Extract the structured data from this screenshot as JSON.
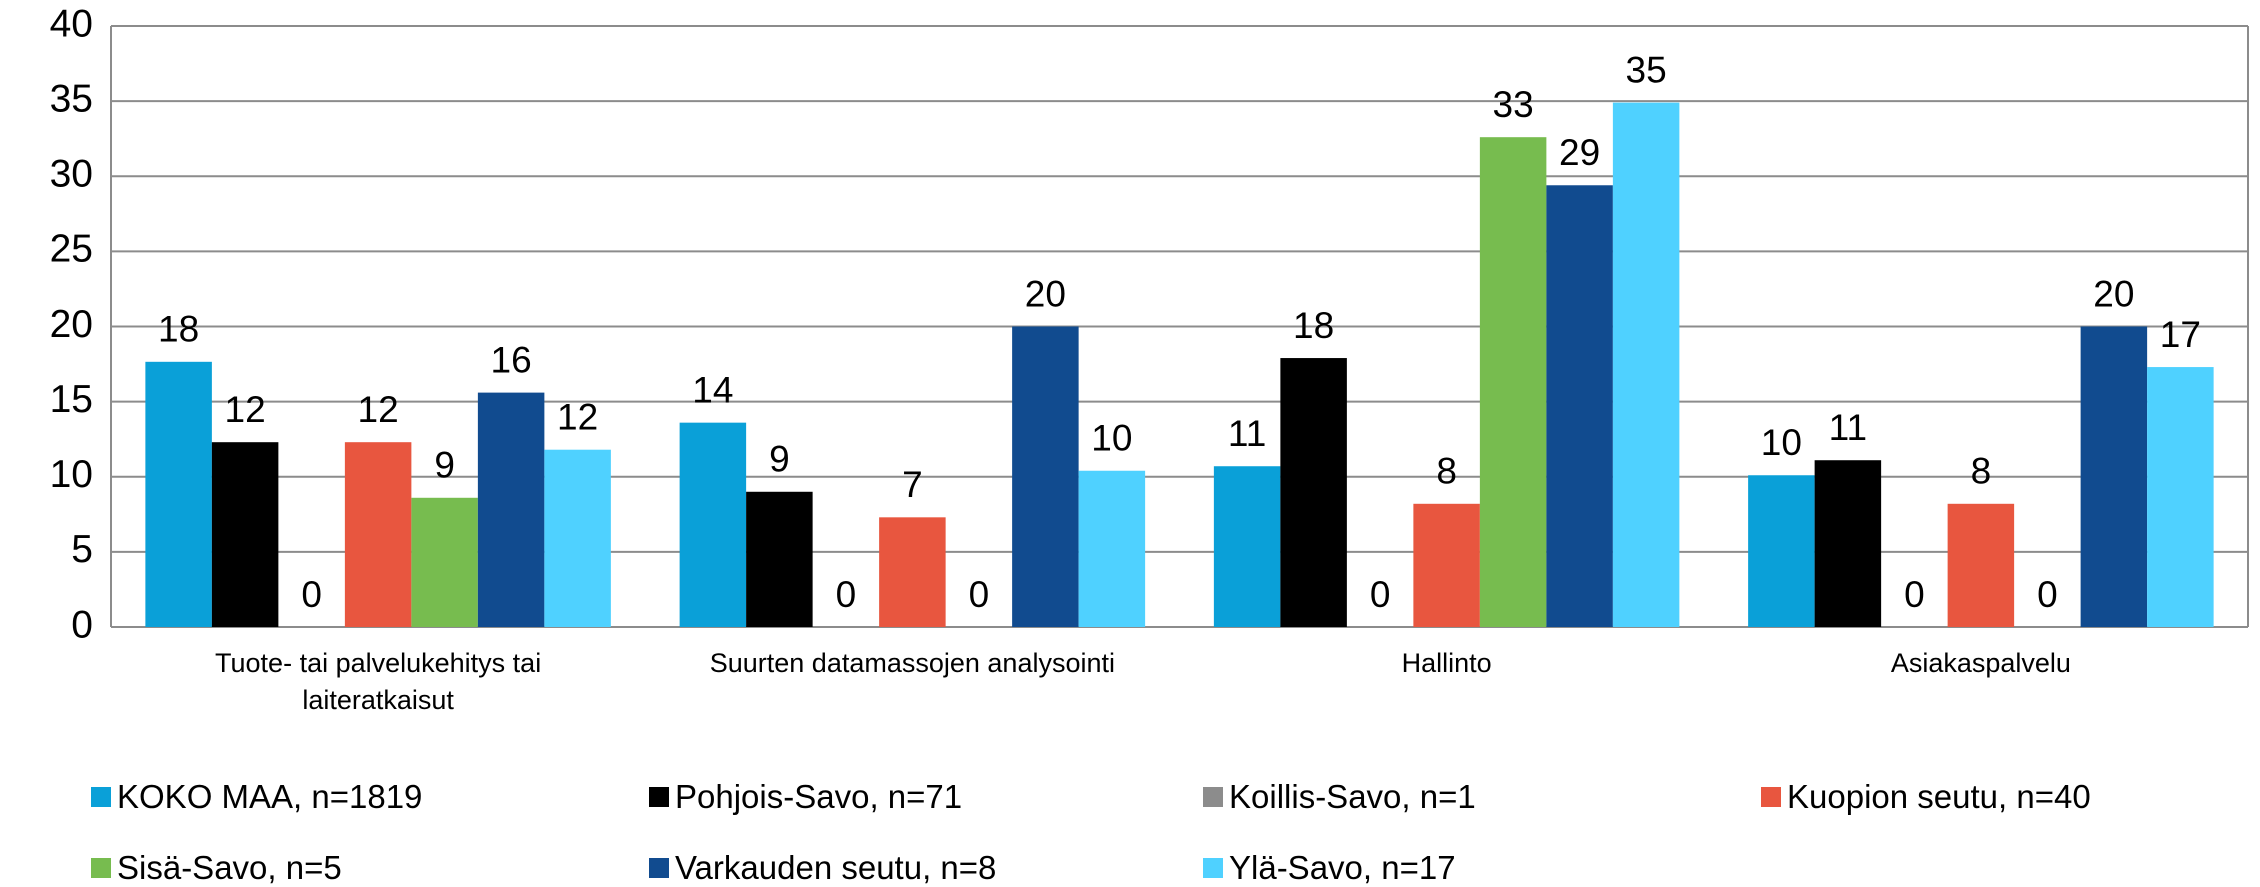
{
  "chart_data": {
    "type": "bar",
    "categories": [
      "Tuote- tai palvelukehitys tai laiteratkaisut",
      "Suurten datamassojen analysointi",
      "Hallinto",
      "Asiakaspalvelu"
    ],
    "series": [
      {
        "name": "KOKO MAA, n=1819",
        "color": "#0aa0d8",
        "values": [
          17.65,
          13.6,
          10.7,
          10.1
        ],
        "value_labels": [
          "18",
          "14",
          "11",
          "10"
        ]
      },
      {
        "name": "Pohjois-Savo, n=71",
        "color": "#000000",
        "values": [
          12.3,
          9.0,
          17.9,
          11.1
        ],
        "value_labels": [
          "12",
          "9",
          "18",
          "11"
        ]
      },
      {
        "name": "Koillis-Savo, n=1",
        "color": "#8c8c8c",
        "values": [
          0,
          0,
          0,
          0
        ],
        "value_labels": [
          "0",
          "0",
          "0",
          "0"
        ]
      },
      {
        "name": "Kuopion seutu, n=40",
        "color": "#e8563f",
        "values": [
          12.3,
          7.3,
          8.2,
          8.2
        ],
        "value_labels": [
          "12",
          "7",
          "8",
          "8"
        ]
      },
      {
        "name": "Sisä-Savo, n=5",
        "color": "#77bc4f",
        "values": [
          8.6,
          0,
          32.6,
          0
        ],
        "value_labels": [
          "9",
          "0",
          "33",
          "0"
        ]
      },
      {
        "name": "Varkauden seutu, n=8",
        "color": "#114b8f",
        "values": [
          15.6,
          20.0,
          29.4,
          20.0
        ],
        "value_labels": [
          "16",
          "20",
          "29",
          "20"
        ]
      },
      {
        "name": "Ylä-Savo, n=17",
        "color": "#4fd1ff",
        "values": [
          11.8,
          10.4,
          34.9,
          17.3
        ],
        "value_labels": [
          "12",
          "10",
          "35",
          "17"
        ]
      }
    ],
    "ylim": [
      0,
      40
    ],
    "yticks": [
      0,
      5,
      10,
      15,
      20,
      25,
      30,
      35,
      40
    ],
    "grid": true,
    "legend": "bottom"
  }
}
